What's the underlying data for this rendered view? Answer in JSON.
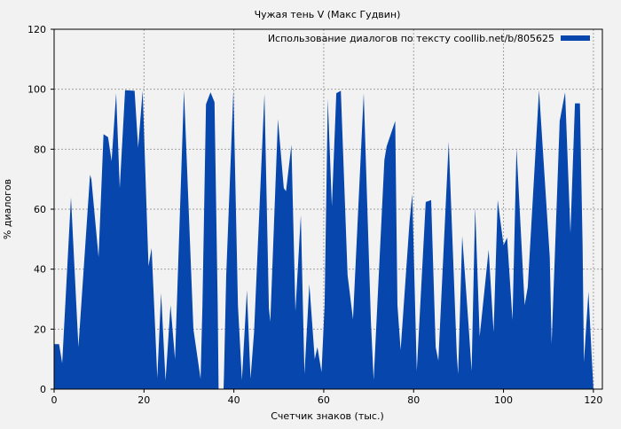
{
  "chart_data": {
    "type": "area",
    "title": "Чужая тень  V (Макс Гудвин)",
    "xlabel": "Счетчик знаков (тыс.)",
    "ylabel": "% диалогов",
    "xlim": [
      0,
      122
    ],
    "ylim": [
      0,
      120
    ],
    "xticks": [
      0,
      20,
      40,
      60,
      80,
      100,
      120
    ],
    "yticks": [
      0,
      20,
      40,
      60,
      80,
      100,
      120
    ],
    "grid": true,
    "legend_position": "top-right",
    "series": [
      {
        "name": "Использование диалогов по тексту coollib.net/b/805625",
        "color": "#0646ad",
        "points": [
          [
            0,
            15
          ],
          [
            1.1,
            15
          ],
          [
            1.8,
            8.6
          ],
          [
            3.75,
            64
          ],
          [
            5.4,
            14
          ],
          [
            8.0,
            71.5
          ],
          [
            8.3,
            70
          ],
          [
            9.9,
            44
          ],
          [
            11,
            85
          ],
          [
            12,
            84
          ],
          [
            12.8,
            76
          ],
          [
            13.8,
            98.7
          ],
          [
            14.6,
            67
          ],
          [
            15.8,
            99.7
          ],
          [
            17.9,
            99.5
          ],
          [
            18.7,
            80.5
          ],
          [
            19.7,
            99.5
          ],
          [
            20.7,
            54
          ],
          [
            21,
            41
          ],
          [
            21.7,
            47
          ],
          [
            22.5,
            19.5
          ],
          [
            22.96,
            3.6
          ],
          [
            23.8,
            32
          ],
          [
            24.8,
            2.8
          ],
          [
            25.9,
            28
          ],
          [
            26.9,
            10
          ],
          [
            28.9,
            99.7
          ],
          [
            31,
            20
          ],
          [
            32.6,
            3.4
          ],
          [
            33,
            28
          ],
          [
            33.8,
            95
          ],
          [
            34.8,
            99
          ],
          [
            35.7,
            95.7
          ],
          [
            36.4,
            28
          ],
          [
            36.6,
            0
          ],
          [
            37.7,
            0
          ],
          [
            37.8,
            5
          ],
          [
            38.3,
            38
          ],
          [
            39.9,
            99.7
          ],
          [
            40.9,
            28
          ],
          [
            41.8,
            3
          ],
          [
            42.9,
            33
          ],
          [
            43.7,
            3.5
          ],
          [
            44.5,
            19
          ],
          [
            46.8,
            98.5
          ],
          [
            47.8,
            27
          ],
          [
            48.1,
            22.5
          ],
          [
            49.8,
            90
          ],
          [
            51.1,
            67
          ],
          [
            51.6,
            66
          ],
          [
            52.8,
            81.5
          ],
          [
            53.7,
            26
          ],
          [
            54.9,
            58
          ],
          [
            55.7,
            5
          ],
          [
            56.8,
            35
          ],
          [
            58,
            10
          ],
          [
            58.6,
            14
          ],
          [
            59.5,
            5.7
          ],
          [
            60.2,
            28
          ],
          [
            60.9,
            96.7
          ],
          [
            61.8,
            61
          ],
          [
            62.8,
            98.7
          ],
          [
            63.8,
            99.5
          ],
          [
            65.3,
            38
          ],
          [
            66.5,
            23.3
          ],
          [
            68.9,
            98.7
          ],
          [
            70.5,
            22.5
          ],
          [
            71.1,
            3
          ],
          [
            73.5,
            76.5
          ],
          [
            74,
            81
          ],
          [
            75.9,
            89.4
          ],
          [
            76.4,
            28
          ],
          [
            77.1,
            13
          ],
          [
            79.1,
            56
          ],
          [
            79.7,
            65
          ],
          [
            80.7,
            6
          ],
          [
            82.7,
            62.4
          ],
          [
            83.9,
            63
          ],
          [
            84.9,
            14
          ],
          [
            85.5,
            9.5
          ],
          [
            87.8,
            82.5
          ],
          [
            89.6,
            11.5
          ],
          [
            89.9,
            5
          ],
          [
            90.8,
            51
          ],
          [
            92.2,
            22
          ],
          [
            92.9,
            6
          ],
          [
            93.7,
            60.6
          ],
          [
            94.7,
            17.5
          ],
          [
            96.7,
            46.5
          ],
          [
            97.8,
            19
          ],
          [
            98.7,
            63
          ],
          [
            100,
            48
          ],
          [
            100.8,
            50.5
          ],
          [
            102,
            23
          ],
          [
            102.9,
            80.5
          ],
          [
            104.7,
            28
          ],
          [
            105.4,
            34
          ],
          [
            107.9,
            99.7
          ],
          [
            110.3,
            44
          ],
          [
            110.7,
            15
          ],
          [
            112.5,
            89.4
          ],
          [
            113.7,
            99
          ],
          [
            114.9,
            52
          ],
          [
            115.9,
            95.3
          ],
          [
            117,
            95.3
          ],
          [
            117.6,
            48
          ],
          [
            117.9,
            9
          ],
          [
            118.9,
            32.5
          ],
          [
            119.7,
            9
          ],
          [
            119.9,
            3
          ],
          [
            120,
            0
          ]
        ]
      }
    ]
  }
}
